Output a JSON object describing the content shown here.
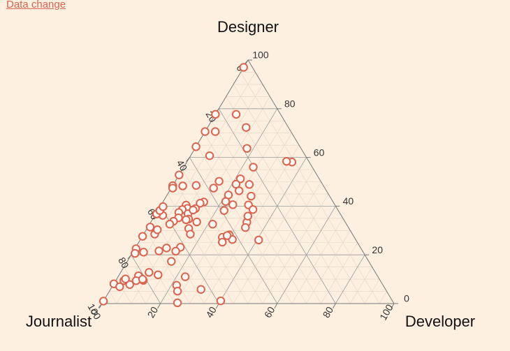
{
  "link": {
    "label": "Data change"
  },
  "chart_data": {
    "type": "scatter",
    "subtype": "ternary",
    "axes": {
      "top": "Designer",
      "left": "Journalist",
      "right": "Developer"
    },
    "ticks": [
      "0",
      "20",
      "40",
      "60",
      "80",
      "100"
    ],
    "grid": true,
    "marker_color": "#d9644f",
    "point_fields": [
      "Developer",
      "Designer"
    ],
    "points": [
      [
        0.0,
        97.0
      ],
      [
        7.1,
        77.7
      ],
      [
        0.0,
        77.7
      ],
      [
        0.0,
        70.6
      ],
      [
        3.5,
        70.6
      ],
      [
        13.2,
        72.3
      ],
      [
        0.0,
        64.4
      ],
      [
        17.8,
        63.7
      ],
      [
        6.5,
        60.7
      ],
      [
        23.8,
        56.0
      ],
      [
        0.0,
        52.8
      ],
      [
        3.5,
        48.3
      ],
      [
        0.0,
        48.4
      ],
      [
        0.5,
        47.4
      ],
      [
        8.0,
        48.5
      ],
      [
        15.0,
        50.2
      ],
      [
        21.8,
        51.2
      ],
      [
        21.4,
        49.0
      ],
      [
        26.0,
        48.9
      ],
      [
        14.5,
        47.4
      ],
      [
        23.8,
        46.3
      ],
      [
        21.0,
        44.6
      ],
      [
        29.9,
        40.5
      ],
      [
        29.0,
        44.1
      ],
      [
        21.4,
        41.9
      ],
      [
        24.5,
        40.6
      ],
      [
        14.0,
        41.7
      ],
      [
        13.0,
        41.2
      ],
      [
        12.5,
        39.0
      ],
      [
        8.6,
        40.4
      ],
      [
        9.7,
        39.1
      ],
      [
        8.2,
        38.6
      ],
      [
        7.6,
        37.4
      ],
      [
        11.0,
        36.9
      ],
      [
        8.6,
        35.2
      ],
      [
        7.6,
        33.8
      ],
      [
        6.9,
        32.6
      ],
      [
        2.7,
        36.2
      ],
      [
        0.3,
        36.8
      ],
      [
        0.7,
        38.2
      ],
      [
        1.0,
        39.8
      ],
      [
        12.0,
        38.4
      ],
      [
        12.3,
        34.7
      ],
      [
        11.6,
        34.4
      ],
      [
        15.7,
        33.5
      ],
      [
        21.6,
        32.6
      ],
      [
        22.7,
        38.2
      ],
      [
        32.4,
        38.6
      ],
      [
        32.9,
        33.4
      ],
      [
        27.6,
        27.2
      ],
      [
        29.5,
        28.2
      ],
      [
        32.0,
        35.9
      ],
      [
        0.8,
        31.4
      ],
      [
        0.1,
        27.6
      ],
      [
        3.8,
        28.5
      ],
      [
        14.3,
        30.8
      ],
      [
        16.0,
        28.5
      ],
      [
        10.7,
        22.8
      ],
      [
        0.4,
        22.5
      ],
      [
        1.0,
        20.6
      ],
      [
        15.3,
        23.1
      ],
      [
        14.5,
        21.5
      ],
      [
        8.7,
        21.6
      ],
      [
        3.7,
        21.1
      ],
      [
        15.1,
        17.3
      ],
      [
        9.7,
        12.8
      ],
      [
        6.8,
        11.4
      ],
      [
        13.3,
        11.8
      ],
      [
        23.0,
        11.0
      ],
      [
        9.4,
        9.5
      ],
      [
        0.0,
        8.1
      ],
      [
        0.0,
        1.0
      ],
      [
        5.6,
        7.8
      ],
      [
        2.8,
        9.4
      ],
      [
        2.6,
        6.9
      ],
      [
        21.8,
        7.5
      ],
      [
        23.3,
        5.1
      ],
      [
        25.7,
        0.3
      ],
      [
        7.0,
        9.4
      ],
      [
        3.0,
        10.1
      ],
      [
        8.9,
        10.0
      ],
      [
        31.0,
        5.8
      ],
      [
        40.1,
        1.1
      ],
      [
        31.5,
        26.3
      ],
      [
        28.6,
        25.2
      ],
      [
        40.6,
        26.1
      ],
      [
        33.5,
        31.2
      ],
      [
        3.8,
        30.3
      ],
      [
        28.9,
        27.9
      ],
      [
        36.0,
        58.1
      ],
      [
        34.0,
        58.4
      ]
    ]
  }
}
